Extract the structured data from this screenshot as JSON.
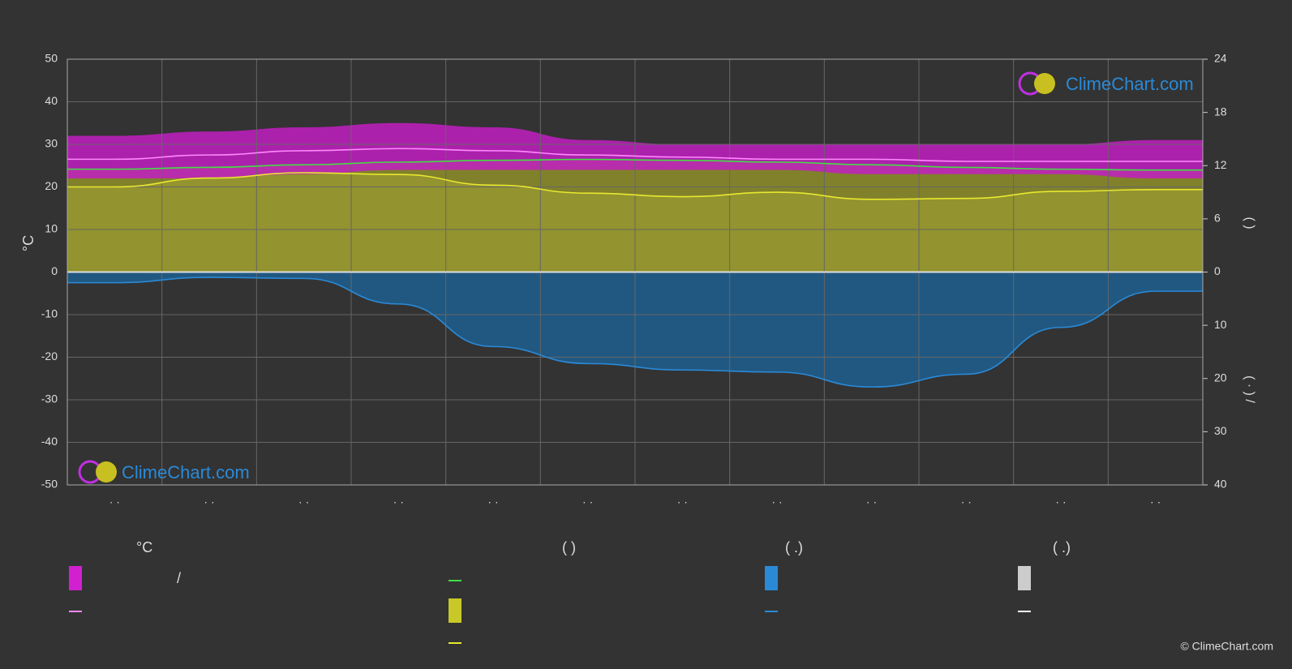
{
  "chart_data": {
    "type": "climate",
    "y_label": "°C",
    "y2_label": "(        )",
    "y3_label": "(  ·  )     /",
    "categories": [
      "· ·",
      "· ·",
      "· ·",
      "· ·",
      "· ·",
      "· ·",
      "· ·",
      "· ·",
      "· ·",
      "· ·",
      "· ·",
      "· ·"
    ],
    "ylim": [
      -50,
      50
    ],
    "yticks": [
      -50,
      -40,
      -30,
      -20,
      -10,
      0,
      10,
      20,
      30,
      40,
      50
    ],
    "y2lim": [
      0,
      24
    ],
    "y2ticks": [
      0,
      6,
      12,
      18,
      24
    ],
    "y3lim": [
      0,
      40
    ],
    "y3ticks": [
      0,
      10,
      20,
      30,
      40
    ],
    "grid": true,
    "series": [
      {
        "color": "#c21fc2",
        "axis": "y",
        "values": [
          32,
          33,
          34,
          35,
          34,
          31,
          30,
          30,
          30,
          30,
          30,
          31
        ]
      },
      {
        "color": "#c21fc2",
        "axis": "y",
        "values": [
          22,
          22,
          23,
          24,
          24,
          24,
          24,
          24,
          23,
          23,
          23,
          22
        ]
      },
      {
        "color": "#ff88ff",
        "axis": "y",
        "values": [
          26.5,
          27.5,
          28.5,
          29,
          28.5,
          27.5,
          27,
          26.5,
          26.5,
          26,
          26,
          26
        ]
      },
      {
        "color": "#44dd44",
        "axis": "y2",
        "values": [
          11.6,
          11.8,
          12.1,
          12.4,
          12.6,
          12.7,
          12.6,
          12.4,
          12.1,
          11.8,
          11.6,
          11.5
        ]
      },
      {
        "color": "#e8e830",
        "axis": "y2",
        "values": [
          9.6,
          10.6,
          11.2,
          11,
          9.8,
          8.9,
          8.5,
          9,
          8.2,
          8.3,
          9.1,
          9.3
        ]
      },
      {
        "color": "#2a8ad8",
        "axis": "y3",
        "values": [
          2,
          1,
          1.2,
          6,
          14,
          17.2,
          18.4,
          18.8,
          21.6,
          19.2,
          10.4,
          3.6
        ]
      }
    ],
    "legend_headers": [
      "°C",
      "(          )",
      "(   .)",
      "(   .)"
    ],
    "legend_text": "/",
    "watermark": "ClimeChart.com",
    "copyright": "© ClimeChart.com"
  }
}
